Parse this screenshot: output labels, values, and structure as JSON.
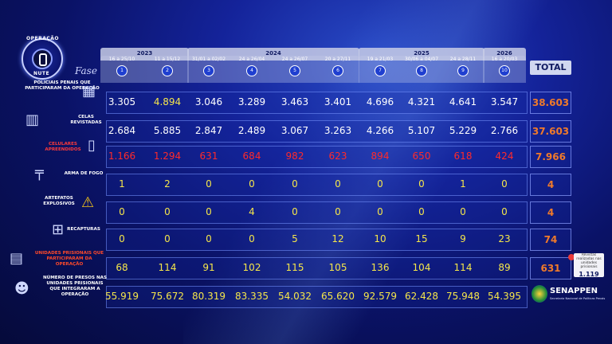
{
  "logo": {
    "top_text": "OPERAÇÃO",
    "bottom_text": "NUTE"
  },
  "fase_label": "Fase",
  "years": [
    {
      "label": "2023",
      "from": 0,
      "to": 1
    },
    {
      "label": "2024",
      "from": 2,
      "to": 5
    },
    {
      "label": "2025",
      "from": 6,
      "to": 8
    },
    {
      "label": "2026",
      "from": 9,
      "to": 9
    }
  ],
  "phases": [
    {
      "n": "1",
      "dates": "16 a 25/10"
    },
    {
      "n": "2",
      "dates": "11 a 15/12"
    },
    {
      "n": "3",
      "dates": "31/01 a 02/02"
    },
    {
      "n": "4",
      "dates": "24 a 26/04"
    },
    {
      "n": "5",
      "dates": "24 a 26/07"
    },
    {
      "n": "6",
      "dates": "20 a 27/11"
    },
    {
      "n": "7",
      "dates": "19 a 21/03"
    },
    {
      "n": "8",
      "dates": "30/06 a 04/07"
    },
    {
      "n": "9",
      "dates": "24 a 28/11"
    },
    {
      "n": "10",
      "dates": "16 a 20/03"
    }
  ],
  "total_label": "TOTAL",
  "colors": {
    "white": "#ffffff",
    "yellow": "#f5e64a",
    "red": "#ff2a2a",
    "orange": "#f07a2a"
  },
  "chart_data": {
    "type": "table",
    "columns": [
      "1",
      "2",
      "3",
      "4",
      "5",
      "6",
      "7",
      "8",
      "9",
      "10"
    ],
    "rows": [
      {
        "label": "POLICIAIS PENAIS QUE PARTICIPARAM DA OPERAÇÃO",
        "icon": "officers-icon",
        "color": "white",
        "values": [
          "3.305",
          "4.894",
          "3.046",
          "3.289",
          "3.463",
          "3.401",
          "4.696",
          "4.321",
          "4.641",
          "3.547"
        ],
        "total": "38.603"
      },
      {
        "label": "CELAS REVISTADAS",
        "icon": "jail-cell-icon",
        "color": "white",
        "values": [
          "2.684",
          "5.885",
          "2.847",
          "2.489",
          "3.067",
          "3.263",
          "4.266",
          "5.107",
          "5.229",
          "2.766"
        ],
        "total": "37.603"
      },
      {
        "label": "CELULARES APREENDIDOS",
        "icon": "cellphone-icon",
        "color": "red",
        "values": [
          "1.166",
          "1.294",
          "631",
          "684",
          "982",
          "623",
          "894",
          "650",
          "618",
          "424"
        ],
        "total": "7.966"
      },
      {
        "label": "ARMA DE FOGO",
        "icon": "gun-icon",
        "color": "yellow",
        "values": [
          "1",
          "2",
          "0",
          "0",
          "0",
          "0",
          "0",
          "0",
          "1",
          "0"
        ],
        "total": "4"
      },
      {
        "label": "ARTEFATOS EXPLOSIVOS",
        "icon": "explosive-icon",
        "color": "yellow",
        "values": [
          "0",
          "0",
          "0",
          "4",
          "0",
          "0",
          "0",
          "0",
          "0",
          "0"
        ],
        "total": "4"
      },
      {
        "label": "RECAPTURAS",
        "icon": "recapture-icon",
        "color": "yellow",
        "values": [
          "0",
          "0",
          "0",
          "0",
          "5",
          "12",
          "10",
          "15",
          "9",
          "23"
        ],
        "total": "74"
      },
      {
        "label": "UNIDADES PRISIONAIS QUE PARTICIPARAM DA OPERAÇÃO",
        "icon": "prison-building-icon",
        "color": "yellow",
        "values": [
          "68",
          "114",
          "91",
          "102",
          "115",
          "105",
          "136",
          "104",
          "114",
          "89"
        ],
        "total": "631"
      },
      {
        "label": "NÚMERO DE PRESOS NAS UNIDADES PRISIONAIS QUE INTEGRARAM A OPERAÇÃO",
        "icon": "prisoners-icon",
        "color": "yellow",
        "values": [
          "55.919",
          "75.672",
          "80.319",
          "83.335",
          "54.032",
          "65.620",
          "92.579",
          "62.428",
          "75.948",
          "54.395"
        ],
        "total": ""
      }
    ]
  },
  "note": {
    "text": "Revistas realizadas nas unidades prisionais",
    "value": "1.119"
  },
  "brand": {
    "name": "SENAPPEN",
    "subtitle": "Secretaria Nacional de Políticas Penais"
  }
}
